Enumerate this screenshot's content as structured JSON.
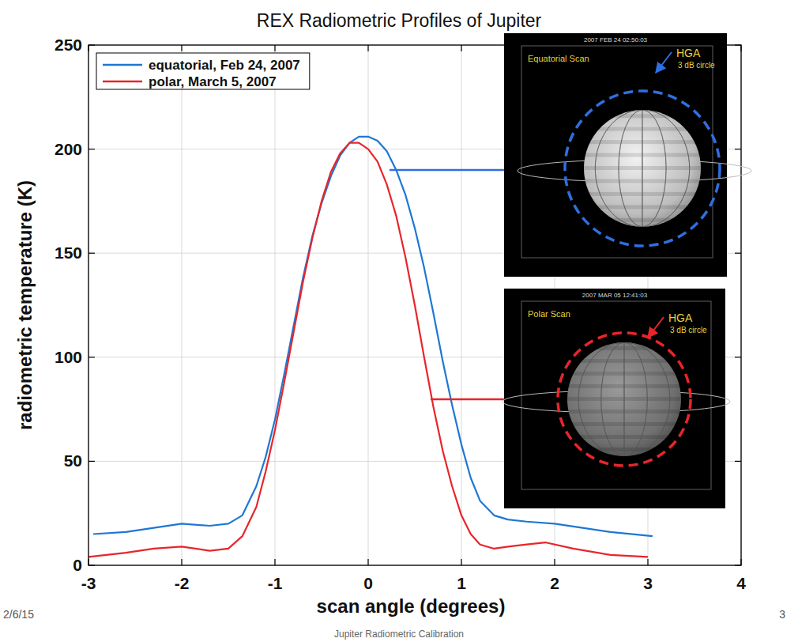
{
  "chart_data": {
    "type": "line",
    "title": "REX Radiometric Profiles of Jupiter",
    "x_label": "scan angle (degrees)",
    "y_label": "radiometric temperature (K)",
    "xlim": [
      -3,
      4
    ],
    "xticks": [
      -3,
      -2,
      -1,
      0,
      1,
      2,
      3,
      4
    ],
    "ylim": [
      0,
      250
    ],
    "yticks": [
      0,
      50,
      100,
      150,
      200,
      250
    ],
    "grid": true,
    "legend": "upper left",
    "series": [
      {
        "name": "equatorial, Feb 24, 2007",
        "color": "#1f77d4",
        "x": [
          -2.95,
          -2.6,
          -2.3,
          -2.0,
          -1.7,
          -1.5,
          -1.35,
          -1.2,
          -1.1,
          -1.0,
          -0.9,
          -0.8,
          -0.7,
          -0.6,
          -0.5,
          -0.4,
          -0.3,
          -0.2,
          -0.1,
          0.0,
          0.1,
          0.2,
          0.3,
          0.4,
          0.5,
          0.6,
          0.7,
          0.8,
          0.9,
          1.0,
          1.1,
          1.2,
          1.35,
          1.5,
          1.7,
          2.0,
          2.3,
          2.6,
          3.05
        ],
        "values": [
          15,
          16,
          18,
          20,
          19,
          20,
          24,
          38,
          52,
          70,
          92,
          115,
          138,
          158,
          174,
          187,
          197,
          203,
          206,
          206,
          204,
          199,
          190,
          178,
          162,
          143,
          121,
          98,
          77,
          58,
          42,
          31,
          24,
          22,
          21,
          20,
          18,
          16,
          14
        ]
      },
      {
        "name": "polar, March 5, 2007",
        "color": "#e8252b",
        "x": [
          -3.0,
          -2.6,
          -2.3,
          -2.0,
          -1.7,
          -1.5,
          -1.35,
          -1.2,
          -1.1,
          -1.0,
          -0.9,
          -0.8,
          -0.7,
          -0.6,
          -0.5,
          -0.4,
          -0.3,
          -0.2,
          -0.1,
          0.0,
          0.1,
          0.2,
          0.3,
          0.4,
          0.5,
          0.6,
          0.7,
          0.8,
          0.9,
          1.0,
          1.1,
          1.2,
          1.35,
          1.5,
          1.7,
          1.9,
          2.2,
          2.6,
          3.0
        ],
        "values": [
          4,
          6,
          8,
          9,
          7,
          8,
          14,
          28,
          45,
          65,
          88,
          112,
          136,
          157,
          175,
          189,
          198,
          203,
          203,
          200,
          194,
          183,
          168,
          148,
          125,
          100,
          76,
          55,
          38,
          24,
          15,
          10,
          8,
          9,
          10,
          11,
          8,
          5,
          4
        ]
      }
    ],
    "annotations": [
      {
        "text": "Equatorial Scan",
        "timestamp": "2007 FEB 24 02:50:03",
        "label": "HGA",
        "sublabel": "3 dB circle",
        "color": "#2f6fe0"
      },
      {
        "text": "Polar Scan",
        "timestamp": "2007 MAR 05 12:41:03",
        "label": "HGA",
        "sublabel": "3 dB circle",
        "color": "#e8252b"
      }
    ]
  },
  "footer": {
    "date": "2/6/15",
    "text": "Jupiter Radiometric Calibration",
    "page": "3"
  }
}
